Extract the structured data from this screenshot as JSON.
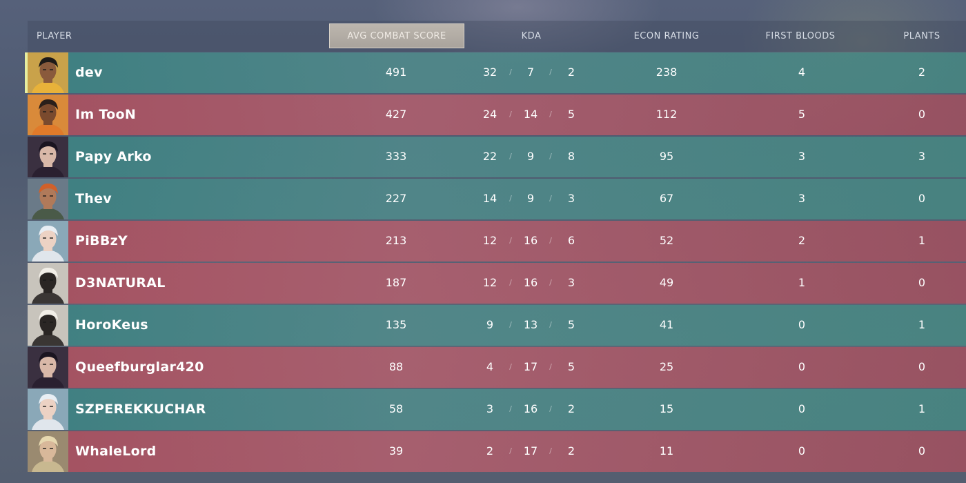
{
  "columns": {
    "player": "PLAYER",
    "acs": "AVG COMBAT SCORE",
    "kda": "KDA",
    "econ": "ECON RATING",
    "first_bloods": "FIRST BLOODS",
    "plants": "PLANTS"
  },
  "colors": {
    "team_a_row": "#4f8f8c",
    "team_b_row": "#a85a68",
    "self_indicator": "#e6eea0",
    "header_text": "#d7dde6"
  },
  "players": [
    {
      "name": "dev",
      "team": "a",
      "self": true,
      "agent_icon": "agent-portrait-phoenix",
      "acs": "491",
      "kills": "32",
      "deaths": "7",
      "assists": "2",
      "econ": "238",
      "first_bloods": "4",
      "plants": "2"
    },
    {
      "name": "Im TooN",
      "team": "b",
      "self": false,
      "agent_icon": "agent-portrait-raze",
      "acs": "427",
      "kills": "24",
      "deaths": "14",
      "assists": "5",
      "econ": "112",
      "first_bloods": "5",
      "plants": "0"
    },
    {
      "name": "Papy Arko",
      "team": "a",
      "self": false,
      "agent_icon": "agent-portrait-reyna",
      "acs": "333",
      "kills": "22",
      "deaths": "9",
      "assists": "8",
      "econ": "95",
      "first_bloods": "3",
      "plants": "3"
    },
    {
      "name": "Thev",
      "team": "a",
      "self": false,
      "agent_icon": "agent-portrait-brimstone",
      "acs": "227",
      "kills": "14",
      "deaths": "9",
      "assists": "3",
      "econ": "67",
      "first_bloods": "3",
      "plants": "0"
    },
    {
      "name": "PiBBzY",
      "team": "b",
      "self": false,
      "agent_icon": "agent-portrait-jett",
      "acs": "213",
      "kills": "12",
      "deaths": "16",
      "assists": "6",
      "econ": "52",
      "first_bloods": "2",
      "plants": "1"
    },
    {
      "name": "D3NATURAL",
      "team": "b",
      "self": false,
      "agent_icon": "agent-portrait-cypher",
      "acs": "187",
      "kills": "12",
      "deaths": "16",
      "assists": "3",
      "econ": "49",
      "first_bloods": "1",
      "plants": "0"
    },
    {
      "name": "HoroKeus",
      "team": "a",
      "self": false,
      "agent_icon": "agent-portrait-cypher",
      "acs": "135",
      "kills": "9",
      "deaths": "13",
      "assists": "5",
      "econ": "41",
      "first_bloods": "0",
      "plants": "1"
    },
    {
      "name": "Queefburglar420",
      "team": "b",
      "self": false,
      "agent_icon": "agent-portrait-reyna",
      "acs": "88",
      "kills": "4",
      "deaths": "17",
      "assists": "5",
      "econ": "25",
      "first_bloods": "0",
      "plants": "0"
    },
    {
      "name": "SZPEREKKUCHAR",
      "team": "a",
      "self": false,
      "agent_icon": "agent-portrait-jett",
      "acs": "58",
      "kills": "3",
      "deaths": "16",
      "assists": "2",
      "econ": "15",
      "first_bloods": "0",
      "plants": "1"
    },
    {
      "name": "WhaleLord",
      "team": "b",
      "self": false,
      "agent_icon": "agent-portrait-sova",
      "acs": "39",
      "kills": "2",
      "deaths": "17",
      "assists": "2",
      "econ": "11",
      "first_bloods": "0",
      "plants": "0"
    }
  ]
}
